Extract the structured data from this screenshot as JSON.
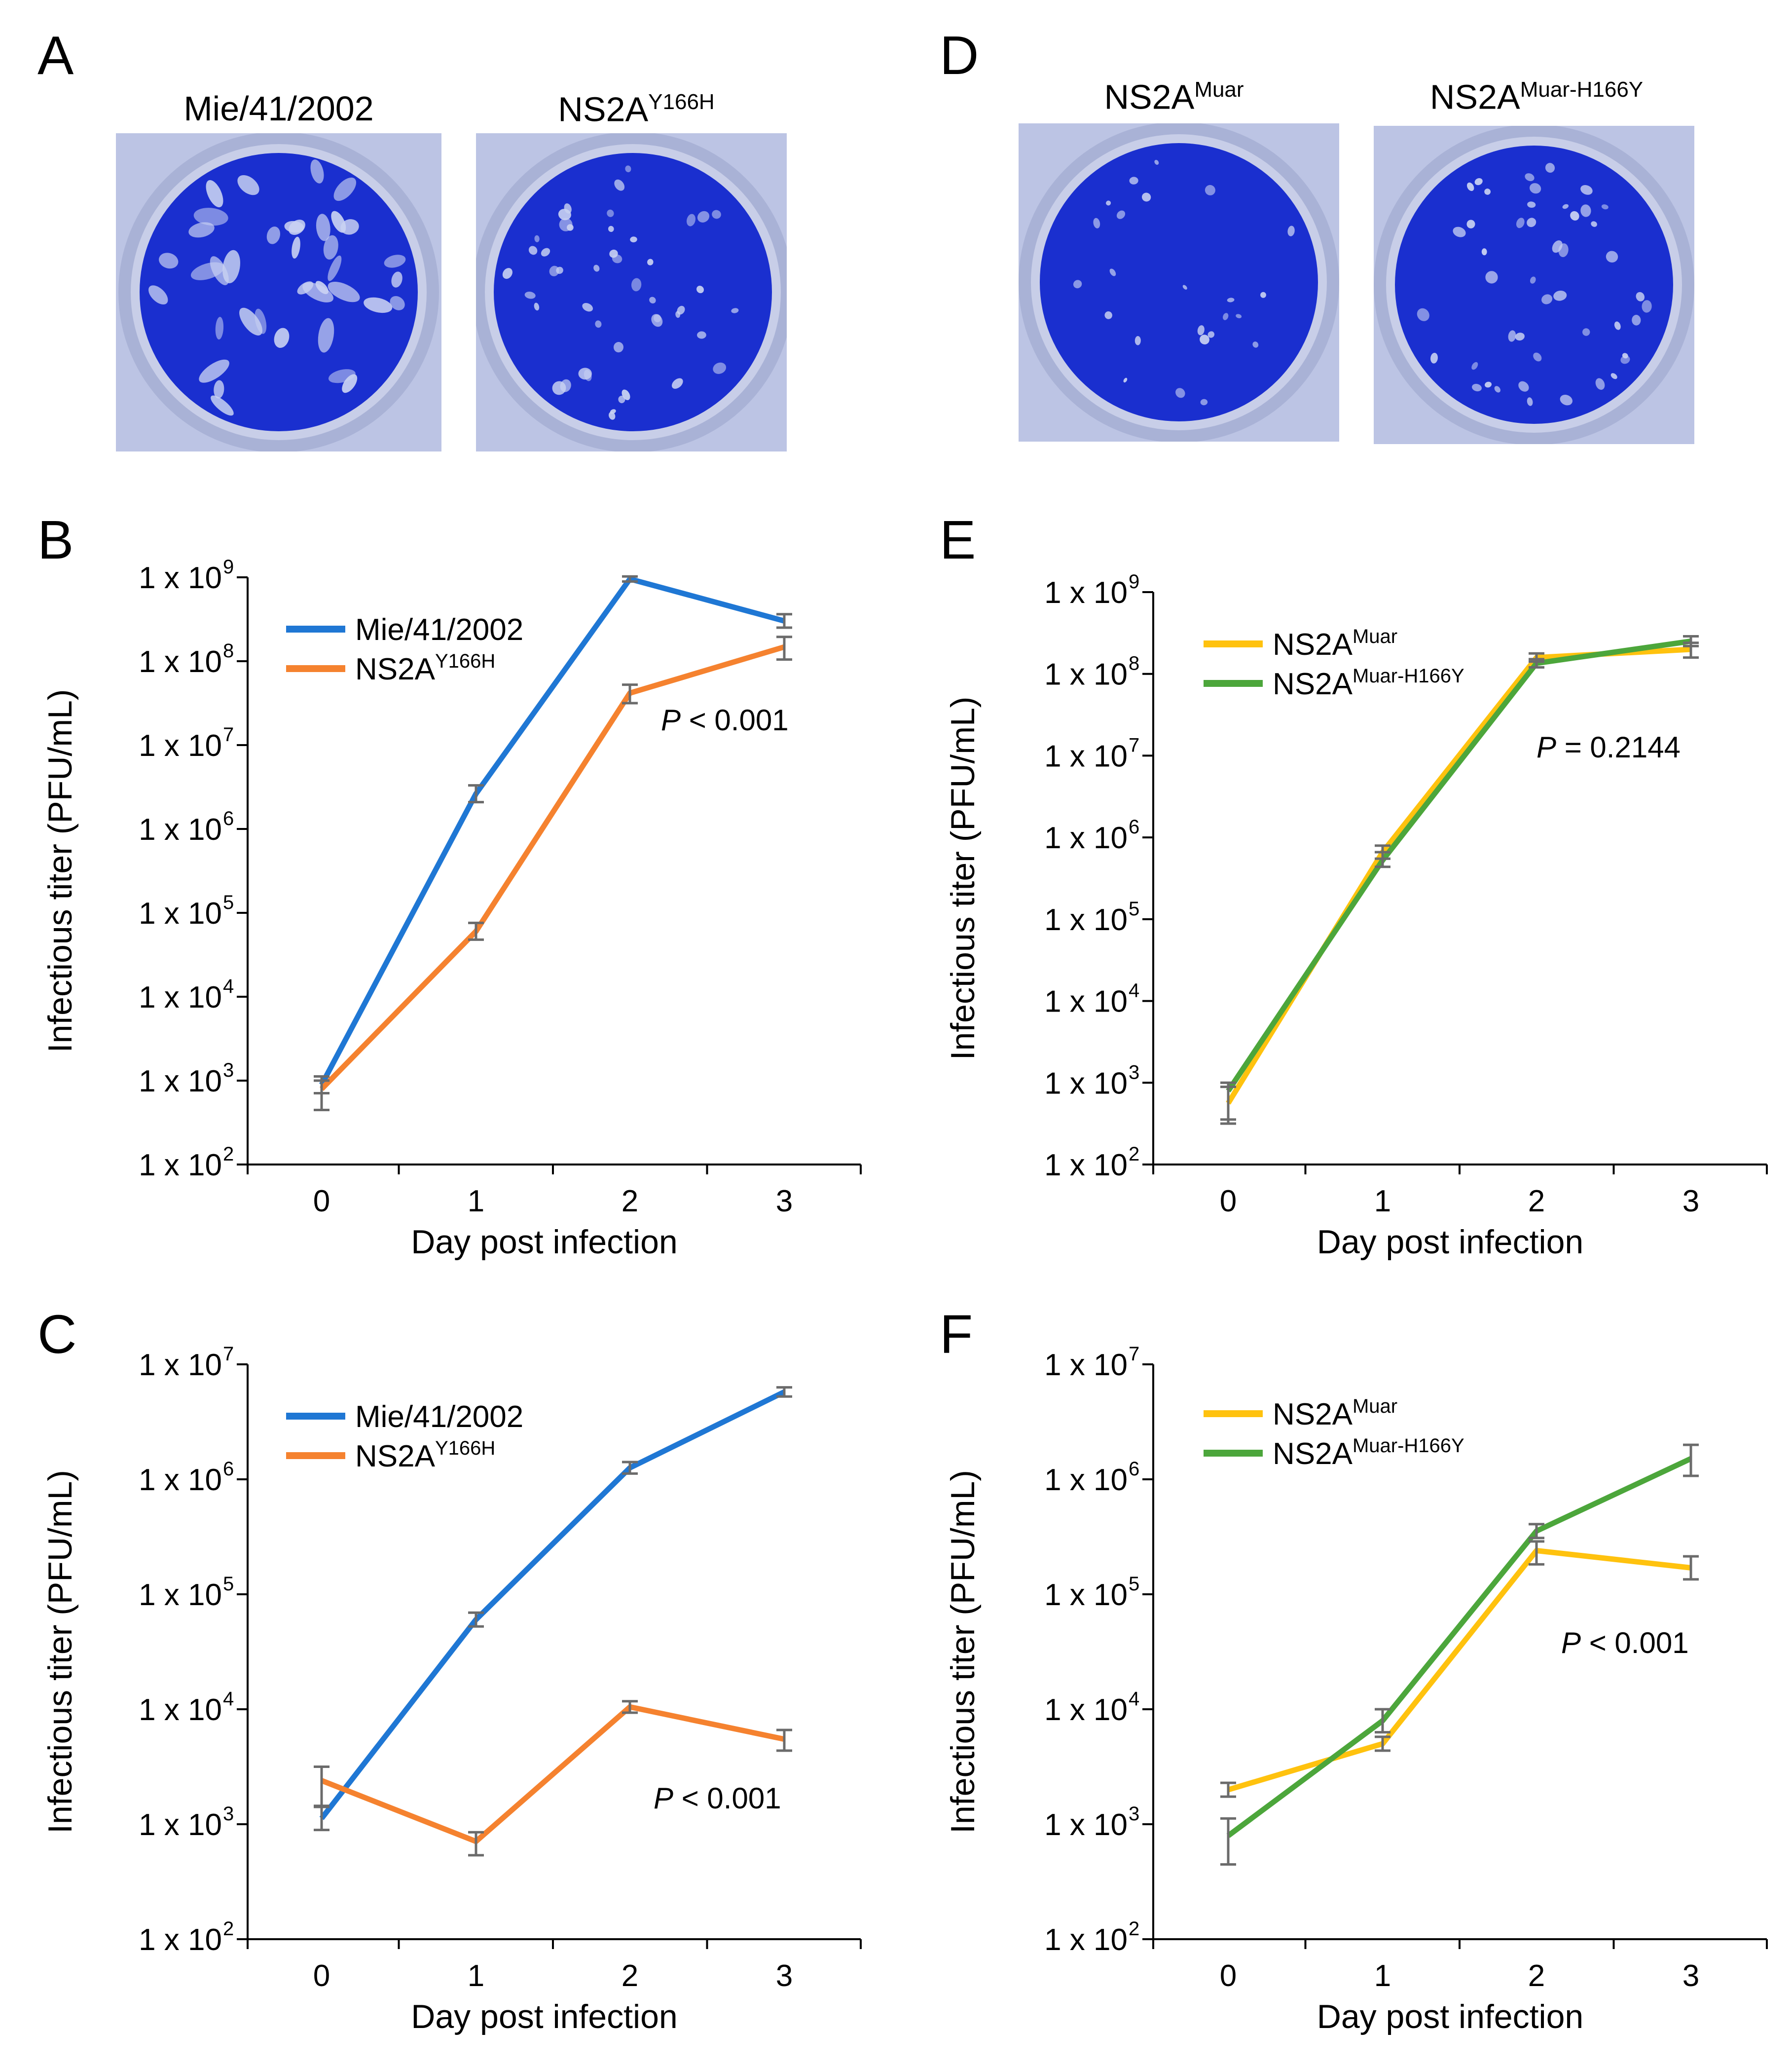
{
  "colors": {
    "blue": "#1f77d4",
    "orange": "#f5822f",
    "yellow": "#ffc20e",
    "green": "#4ca63b",
    "error": "#6b6b6b",
    "plate_blue": "#1a2fcf"
  },
  "plaques": {
    "A": {
      "letter": "A",
      "wells": [
        {
          "title": "Mie/41/2002"
        },
        {
          "title_base": "NS2A",
          "title_sup": "Y166H"
        }
      ]
    },
    "D": {
      "letter": "D",
      "wells": [
        {
          "title_base": "NS2A",
          "title_sup": "Muar"
        },
        {
          "title_base": "NS2A",
          "title_sup": "Muar-H166Y"
        }
      ]
    }
  },
  "chart_data": [
    {
      "id": "B",
      "letter": "B",
      "type": "line",
      "xlabel": "Day post infection",
      "ylabel": "Infectious titer (PFU/mL)",
      "x": [
        0,
        1,
        2,
        3
      ],
      "ylog_range": [
        2,
        9
      ],
      "ytick_labels": [
        "1 x 10",
        "1 x 10",
        "1 x 10",
        "1 x 10",
        "1 x 10",
        "1 x 10",
        "1 x 10",
        "1 x 10"
      ],
      "ytick_exponents": [
        "2",
        "3",
        "4",
        "5",
        "6",
        "7",
        "8",
        "9"
      ],
      "pvalue": {
        "italic": "P",
        "text": " < 0.001"
      },
      "series": [
        {
          "name": "Mie/41/2002",
          "name_base": "Mie/41/2002",
          "name_sup": "",
          "color": "blue",
          "log_values": [
            2.95,
            6.42,
            8.98,
            8.48
          ],
          "err_up": [
            0.1,
            0.1,
            0.03,
            0.08
          ],
          "err_down": [
            0.1,
            0.1,
            0.03,
            0.08
          ]
        },
        {
          "name": "NS2AY166H",
          "name_base": "NS2A",
          "name_sup": "Y166H",
          "color": "orange",
          "log_values": [
            2.9,
            4.78,
            7.62,
            8.17
          ],
          "err_up": [
            0.1,
            0.1,
            0.1,
            0.12
          ],
          "err_down": [
            0.25,
            0.1,
            0.12,
            0.15
          ]
        }
      ]
    },
    {
      "id": "C",
      "letter": "C",
      "type": "line",
      "xlabel": "Day post infection",
      "ylabel": "Infectious titer (PFU/mL)",
      "x": [
        0,
        1,
        2,
        3
      ],
      "ylog_range": [
        2,
        7
      ],
      "ytick_labels": [
        "1 x 10",
        "1 x 10",
        "1 x 10",
        "1 x 10",
        "1 x 10",
        "1 x 10"
      ],
      "ytick_exponents": [
        "2",
        "3",
        "4",
        "5",
        "6",
        "7"
      ],
      "pvalue": {
        "italic": "P",
        "text": " < 0.001"
      },
      "series": [
        {
          "name": "Mie/41/2002",
          "name_base": "Mie/41/2002",
          "name_sup": "",
          "color": "blue",
          "log_values": [
            3.05,
            4.78,
            6.1,
            6.76
          ],
          "err_up": [
            0.1,
            0.06,
            0.05,
            0.04
          ],
          "err_down": [
            0.1,
            0.06,
            0.05,
            0.04
          ]
        },
        {
          "name": "NS2AY166H",
          "name_base": "NS2A",
          "name_sup": "Y166H",
          "color": "orange",
          "log_values": [
            3.38,
            2.85,
            4.02,
            3.74
          ],
          "err_up": [
            0.12,
            0.08,
            0.05,
            0.08
          ],
          "err_down": [
            0.22,
            0.12,
            0.05,
            0.1
          ]
        }
      ]
    },
    {
      "id": "E",
      "letter": "E",
      "type": "line",
      "xlabel": "Day post infection",
      "ylabel": "Infectious titer (PFU/mL)",
      "x": [
        0,
        1,
        2,
        3
      ],
      "ylog_range": [
        2,
        9
      ],
      "ytick_labels": [
        "1 x 10",
        "1 x 10",
        "1 x 10",
        "1 x 10",
        "1 x 10",
        "1 x 10",
        "1 x 10",
        "1 x 10"
      ],
      "ytick_exponents": [
        "2",
        "3",
        "4",
        "5",
        "6",
        "7",
        "8",
        "9"
      ],
      "pvalue": {
        "italic": "P",
        "text": " = 0.2144"
      },
      "series": [
        {
          "name": "NS2AMuar",
          "name_base": "NS2A",
          "name_sup": "Muar",
          "color": "yellow",
          "log_values": [
            2.75,
            5.82,
            8.2,
            8.3
          ],
          "err_up": [
            0.2,
            0.08,
            0.05,
            0.08
          ],
          "err_down": [
            0.25,
            0.08,
            0.05,
            0.1
          ]
        },
        {
          "name": "NS2AMuar-H166Y",
          "name_base": "NS2A",
          "name_sup": "Muar-H166Y",
          "color": "green",
          "log_values": [
            2.9,
            5.72,
            8.13,
            8.4
          ],
          "err_up": [
            0.1,
            0.1,
            0.05,
            0.06
          ],
          "err_down": [
            0.35,
            0.08,
            0.05,
            0.06
          ]
        }
      ]
    },
    {
      "id": "F",
      "letter": "F",
      "type": "line",
      "xlabel": "Day post infection",
      "ylabel": "Infectious titer (PFU/mL)",
      "x": [
        0,
        1,
        2,
        3
      ],
      "ylog_range": [
        2,
        7
      ],
      "ytick_labels": [
        "1 x 10",
        "1 x 10",
        "1 x 10",
        "1 x 10",
        "1 x 10",
        "1 x 10"
      ],
      "ytick_exponents": [
        "2",
        "3",
        "4",
        "5",
        "6",
        "7"
      ],
      "pvalue": {
        "italic": "P",
        "text": " < 0.001"
      },
      "series": [
        {
          "name": "NS2AMuar",
          "name_base": "NS2A",
          "name_sup": "Muar",
          "color": "yellow",
          "log_values": [
            3.3,
            3.7,
            5.38,
            5.23
          ],
          "err_up": [
            0.06,
            0.06,
            0.08,
            0.1
          ],
          "err_down": [
            0.06,
            0.06,
            0.12,
            0.1
          ]
        },
        {
          "name": "NS2AMuar-H166Y",
          "name_base": "NS2A",
          "name_sup": "Muar-H166Y",
          "color": "green",
          "log_values": [
            2.9,
            3.9,
            5.55,
            6.18
          ],
          "err_up": [
            0.15,
            0.1,
            0.06,
            0.12
          ],
          "err_down": [
            0.25,
            0.1,
            0.06,
            0.15
          ]
        }
      ]
    }
  ]
}
